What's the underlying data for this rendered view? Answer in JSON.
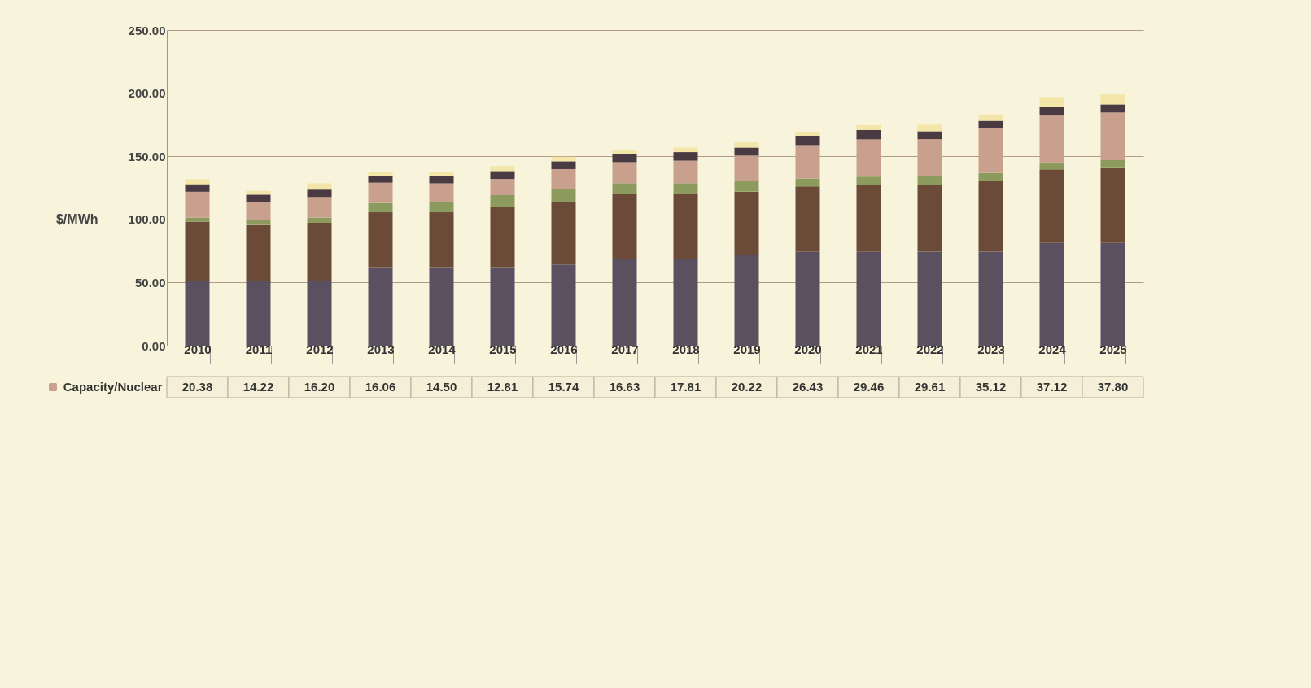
{
  "chart_data": {
    "type": "bar",
    "stacked": true,
    "ylabel": "$/MWh",
    "categories": [
      "2010",
      "2011",
      "2012",
      "2013",
      "2014",
      "2015",
      "2016",
      "2017",
      "2018",
      "2019",
      "2020",
      "2021",
      "2022",
      "2023",
      "2024",
      "2025"
    ],
    "ylim": [
      0,
      250
    ],
    "yticks": [
      {
        "value": 0,
        "label": "0.00"
      },
      {
        "value": 50,
        "label": "50.00"
      },
      {
        "value": 100,
        "label": "100.00"
      },
      {
        "value": 150,
        "label": "150.00"
      },
      {
        "value": 200,
        "label": "200.00"
      },
      {
        "value": 250,
        "label": "250.00"
      }
    ],
    "grid": "y",
    "legend": "bottom",
    "series": [
      {
        "color": "#5a5060",
        "values": [
          51.3,
          51.3,
          51.3,
          62.1,
          62.1,
          62.1,
          64.2,
          69,
          69,
          71.8,
          74.3,
          74.3,
          74.4,
          74.4,
          81.3,
          81.3
        ]
      },
      {
        "color": "#6b4a38",
        "values": [
          47,
          44.3,
          46,
          43.5,
          43.5,
          47.7,
          49.4,
          50.9,
          50.9,
          50.2,
          51.9,
          52.9,
          52.7,
          55.8,
          58.3,
          60
        ]
      },
      {
        "color": "#8c9a5e",
        "values": [
          3.2,
          3.8,
          4.2,
          7.4,
          8.4,
          9.4,
          10.5,
          8.8,
          8.8,
          8.3,
          6.2,
          6.7,
          6.9,
          6.7,
          5.6,
          5.6
        ]
      },
      {
        "name": "Capacity/Nuclear",
        "color": "#c9a08e",
        "values": [
          20.38,
          14.22,
          16.2,
          16.06,
          14.5,
          12.81,
          15.74,
          16.63,
          17.81,
          20.22,
          26.43,
          29.46,
          29.61,
          35.12,
          37.12,
          37.8
        ],
        "value_labels": [
          "20.38",
          "14.22",
          "16.20",
          "16.06",
          "14.50",
          "12.81",
          "15.74",
          "16.63",
          "17.81",
          "20.22",
          "26.43",
          "29.46",
          "29.61",
          "35.12",
          "37.12",
          "37.80"
        ]
      },
      {
        "color": "#4a3a42",
        "values": [
          6,
          6,
          5.9,
          5.5,
          6,
          6.3,
          6.2,
          6.8,
          6.8,
          6.4,
          7.5,
          7.5,
          6.2,
          6.1,
          6.7,
          6.4
        ]
      },
      {
        "color": "#f3e6a8",
        "values": [
          4,
          3,
          5,
          3,
          3,
          4,
          3.6,
          2.7,
          3.6,
          4.2,
          3.2,
          3.8,
          5.2,
          5,
          7.9,
          8.3
        ]
      }
    ]
  }
}
